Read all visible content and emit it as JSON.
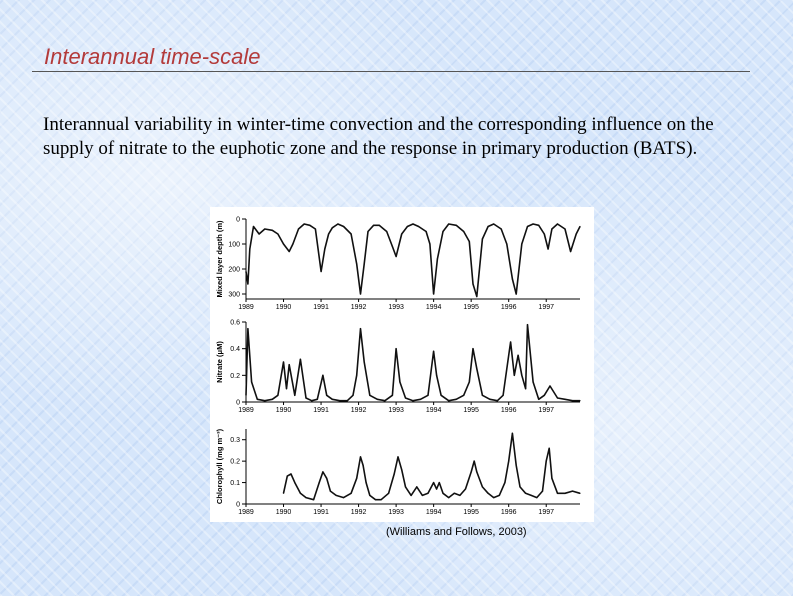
{
  "slide": {
    "title": "Interannual time-scale",
    "body": "Interannual variability in winter-time convection and the corresponding influence on the supply of nitrate to the euphotic zone and the response in primary production (BATS).",
    "caption": "(Williams and Follows, 2003)"
  },
  "colors": {
    "title": "#b33a3a",
    "line": "#111111",
    "background": "#d6e6fb"
  },
  "chart_data": [
    {
      "type": "line",
      "ylabel": "Mixed layer depth (m)",
      "ylim": [
        0,
        320
      ],
      "y_inverted": true,
      "yticks": [
        "0",
        "100",
        "200",
        "300"
      ],
      "ytick_values": [
        0,
        100,
        200,
        300
      ],
      "xlim": [
        1989,
        1997.9
      ],
      "xticks": [
        "1989",
        "1990",
        "1991",
        "1992",
        "1993",
        "1994",
        "1995",
        "1996",
        "1997"
      ],
      "xtick_values": [
        1989,
        1990,
        1991,
        1992,
        1993,
        1994,
        1995,
        1996,
        1997
      ],
      "x": [
        1989.0,
        1989.05,
        1989.1,
        1989.2,
        1989.35,
        1989.5,
        1989.7,
        1989.85,
        1990.0,
        1990.15,
        1990.25,
        1990.4,
        1990.55,
        1990.7,
        1990.85,
        1991.0,
        1991.1,
        1991.2,
        1991.3,
        1991.45,
        1991.6,
        1991.8,
        1991.95,
        1992.05,
        1992.15,
        1992.25,
        1992.4,
        1992.55,
        1992.75,
        1992.9,
        1993.0,
        1993.15,
        1993.3,
        1993.45,
        1993.6,
        1993.8,
        1993.9,
        1994.0,
        1994.1,
        1994.25,
        1994.4,
        1994.6,
        1994.8,
        1994.95,
        1995.05,
        1995.15,
        1995.3,
        1995.45,
        1995.6,
        1995.8,
        1995.95,
        1996.1,
        1996.2,
        1996.35,
        1996.5,
        1996.65,
        1996.8,
        1996.95,
        1997.05,
        1997.15,
        1997.3,
        1997.5,
        1997.65,
        1997.8,
        1997.9
      ],
      "values": [
        210,
        260,
        120,
        30,
        60,
        40,
        45,
        60,
        100,
        130,
        100,
        40,
        20,
        25,
        40,
        210,
        120,
        60,
        35,
        20,
        30,
        60,
        180,
        300,
        180,
        50,
        25,
        25,
        50,
        110,
        150,
        60,
        30,
        20,
        30,
        50,
        100,
        300,
        160,
        50,
        20,
        25,
        50,
        90,
        260,
        310,
        80,
        30,
        20,
        40,
        100,
        240,
        300,
        100,
        30,
        20,
        25,
        60,
        120,
        40,
        20,
        40,
        130,
        60,
        30
      ]
    },
    {
      "type": "line",
      "ylabel": "Nitrate (μM)",
      "ylim": [
        0,
        0.6
      ],
      "yticks": [
        "0",
        "0.2",
        "0.4",
        "0.6"
      ],
      "ytick_values": [
        0,
        0.2,
        0.4,
        0.6
      ],
      "xlim": [
        1989,
        1997.9
      ],
      "xticks": [
        "1989",
        "1990",
        "1991",
        "1992",
        "1993",
        "1994",
        "1995",
        "1996",
        "1997"
      ],
      "xtick_values": [
        1989,
        1990,
        1991,
        1992,
        1993,
        1994,
        1995,
        1996,
        1997
      ],
      "x": [
        1989.0,
        1989.05,
        1989.15,
        1989.3,
        1989.5,
        1989.7,
        1989.85,
        1990.0,
        1990.08,
        1990.15,
        1990.3,
        1990.45,
        1990.6,
        1990.75,
        1990.9,
        1991.05,
        1991.15,
        1991.3,
        1991.5,
        1991.7,
        1991.85,
        1991.95,
        1992.05,
        1992.15,
        1992.3,
        1992.5,
        1992.7,
        1992.9,
        1993.0,
        1993.1,
        1993.25,
        1993.45,
        1993.65,
        1993.85,
        1994.0,
        1994.08,
        1994.2,
        1994.4,
        1994.6,
        1994.8,
        1994.95,
        1995.05,
        1995.15,
        1995.3,
        1995.5,
        1995.7,
        1995.85,
        1996.0,
        1996.05,
        1996.15,
        1996.25,
        1996.35,
        1996.45,
        1996.5,
        1996.65,
        1996.8,
        1996.95,
        1997.1,
        1997.3,
        1997.5,
        1997.7,
        1997.9
      ],
      "values": [
        0.05,
        0.55,
        0.15,
        0.02,
        0.01,
        0.02,
        0.05,
        0.3,
        0.1,
        0.28,
        0.05,
        0.32,
        0.03,
        0.01,
        0.02,
        0.2,
        0.05,
        0.02,
        0.01,
        0.01,
        0.05,
        0.2,
        0.55,
        0.3,
        0.05,
        0.02,
        0.01,
        0.05,
        0.4,
        0.15,
        0.03,
        0.01,
        0.02,
        0.05,
        0.38,
        0.2,
        0.05,
        0.01,
        0.02,
        0.05,
        0.15,
        0.4,
        0.25,
        0.05,
        0.02,
        0.01,
        0.05,
        0.35,
        0.45,
        0.2,
        0.35,
        0.2,
        0.1,
        0.58,
        0.15,
        0.02,
        0.05,
        0.12,
        0.03,
        0.02,
        0.01,
        0.01
      ]
    },
    {
      "type": "line",
      "ylabel": "Chlorophyll (mg m⁻³)",
      "ylim": [
        0,
        0.35
      ],
      "yticks": [
        "0",
        "0.1",
        "0.2",
        "0.3"
      ],
      "ytick_values": [
        0,
        0.1,
        0.2,
        0.3
      ],
      "xlim": [
        1989,
        1997.9
      ],
      "xticks": [
        "1989",
        "1990",
        "1991",
        "1992",
        "1993",
        "1994",
        "1995",
        "1996",
        "1997"
      ],
      "xtick_values": [
        1989,
        1990,
        1991,
        1992,
        1993,
        1994,
        1995,
        1996,
        1997
      ],
      "x": [
        1990.0,
        1990.1,
        1990.2,
        1990.3,
        1990.45,
        1990.6,
        1990.8,
        1990.95,
        1991.05,
        1991.15,
        1991.25,
        1991.4,
        1991.6,
        1991.8,
        1991.95,
        1992.05,
        1992.12,
        1992.2,
        1992.3,
        1992.45,
        1992.6,
        1992.8,
        1992.95,
        1993.05,
        1993.15,
        1993.25,
        1993.4,
        1993.55,
        1993.7,
        1993.85,
        1994.0,
        1994.08,
        1994.15,
        1994.25,
        1994.4,
        1994.55,
        1994.7,
        1994.85,
        1995.0,
        1995.08,
        1995.15,
        1995.3,
        1995.45,
        1995.6,
        1995.75,
        1995.9,
        1996.0,
        1996.1,
        1996.2,
        1996.3,
        1996.45,
        1996.6,
        1996.75,
        1996.9,
        1997.0,
        1997.08,
        1997.15,
        1997.3,
        1997.5,
        1997.7,
        1997.9
      ],
      "values": [
        0.05,
        0.13,
        0.14,
        0.1,
        0.05,
        0.03,
        0.02,
        0.1,
        0.15,
        0.12,
        0.06,
        0.04,
        0.03,
        0.05,
        0.12,
        0.22,
        0.18,
        0.1,
        0.04,
        0.02,
        0.02,
        0.05,
        0.14,
        0.22,
        0.16,
        0.08,
        0.04,
        0.08,
        0.04,
        0.05,
        0.1,
        0.07,
        0.1,
        0.05,
        0.03,
        0.05,
        0.04,
        0.07,
        0.15,
        0.2,
        0.15,
        0.08,
        0.05,
        0.03,
        0.04,
        0.1,
        0.2,
        0.33,
        0.18,
        0.08,
        0.05,
        0.04,
        0.03,
        0.06,
        0.2,
        0.26,
        0.12,
        0.05,
        0.05,
        0.06,
        0.05
      ]
    }
  ]
}
